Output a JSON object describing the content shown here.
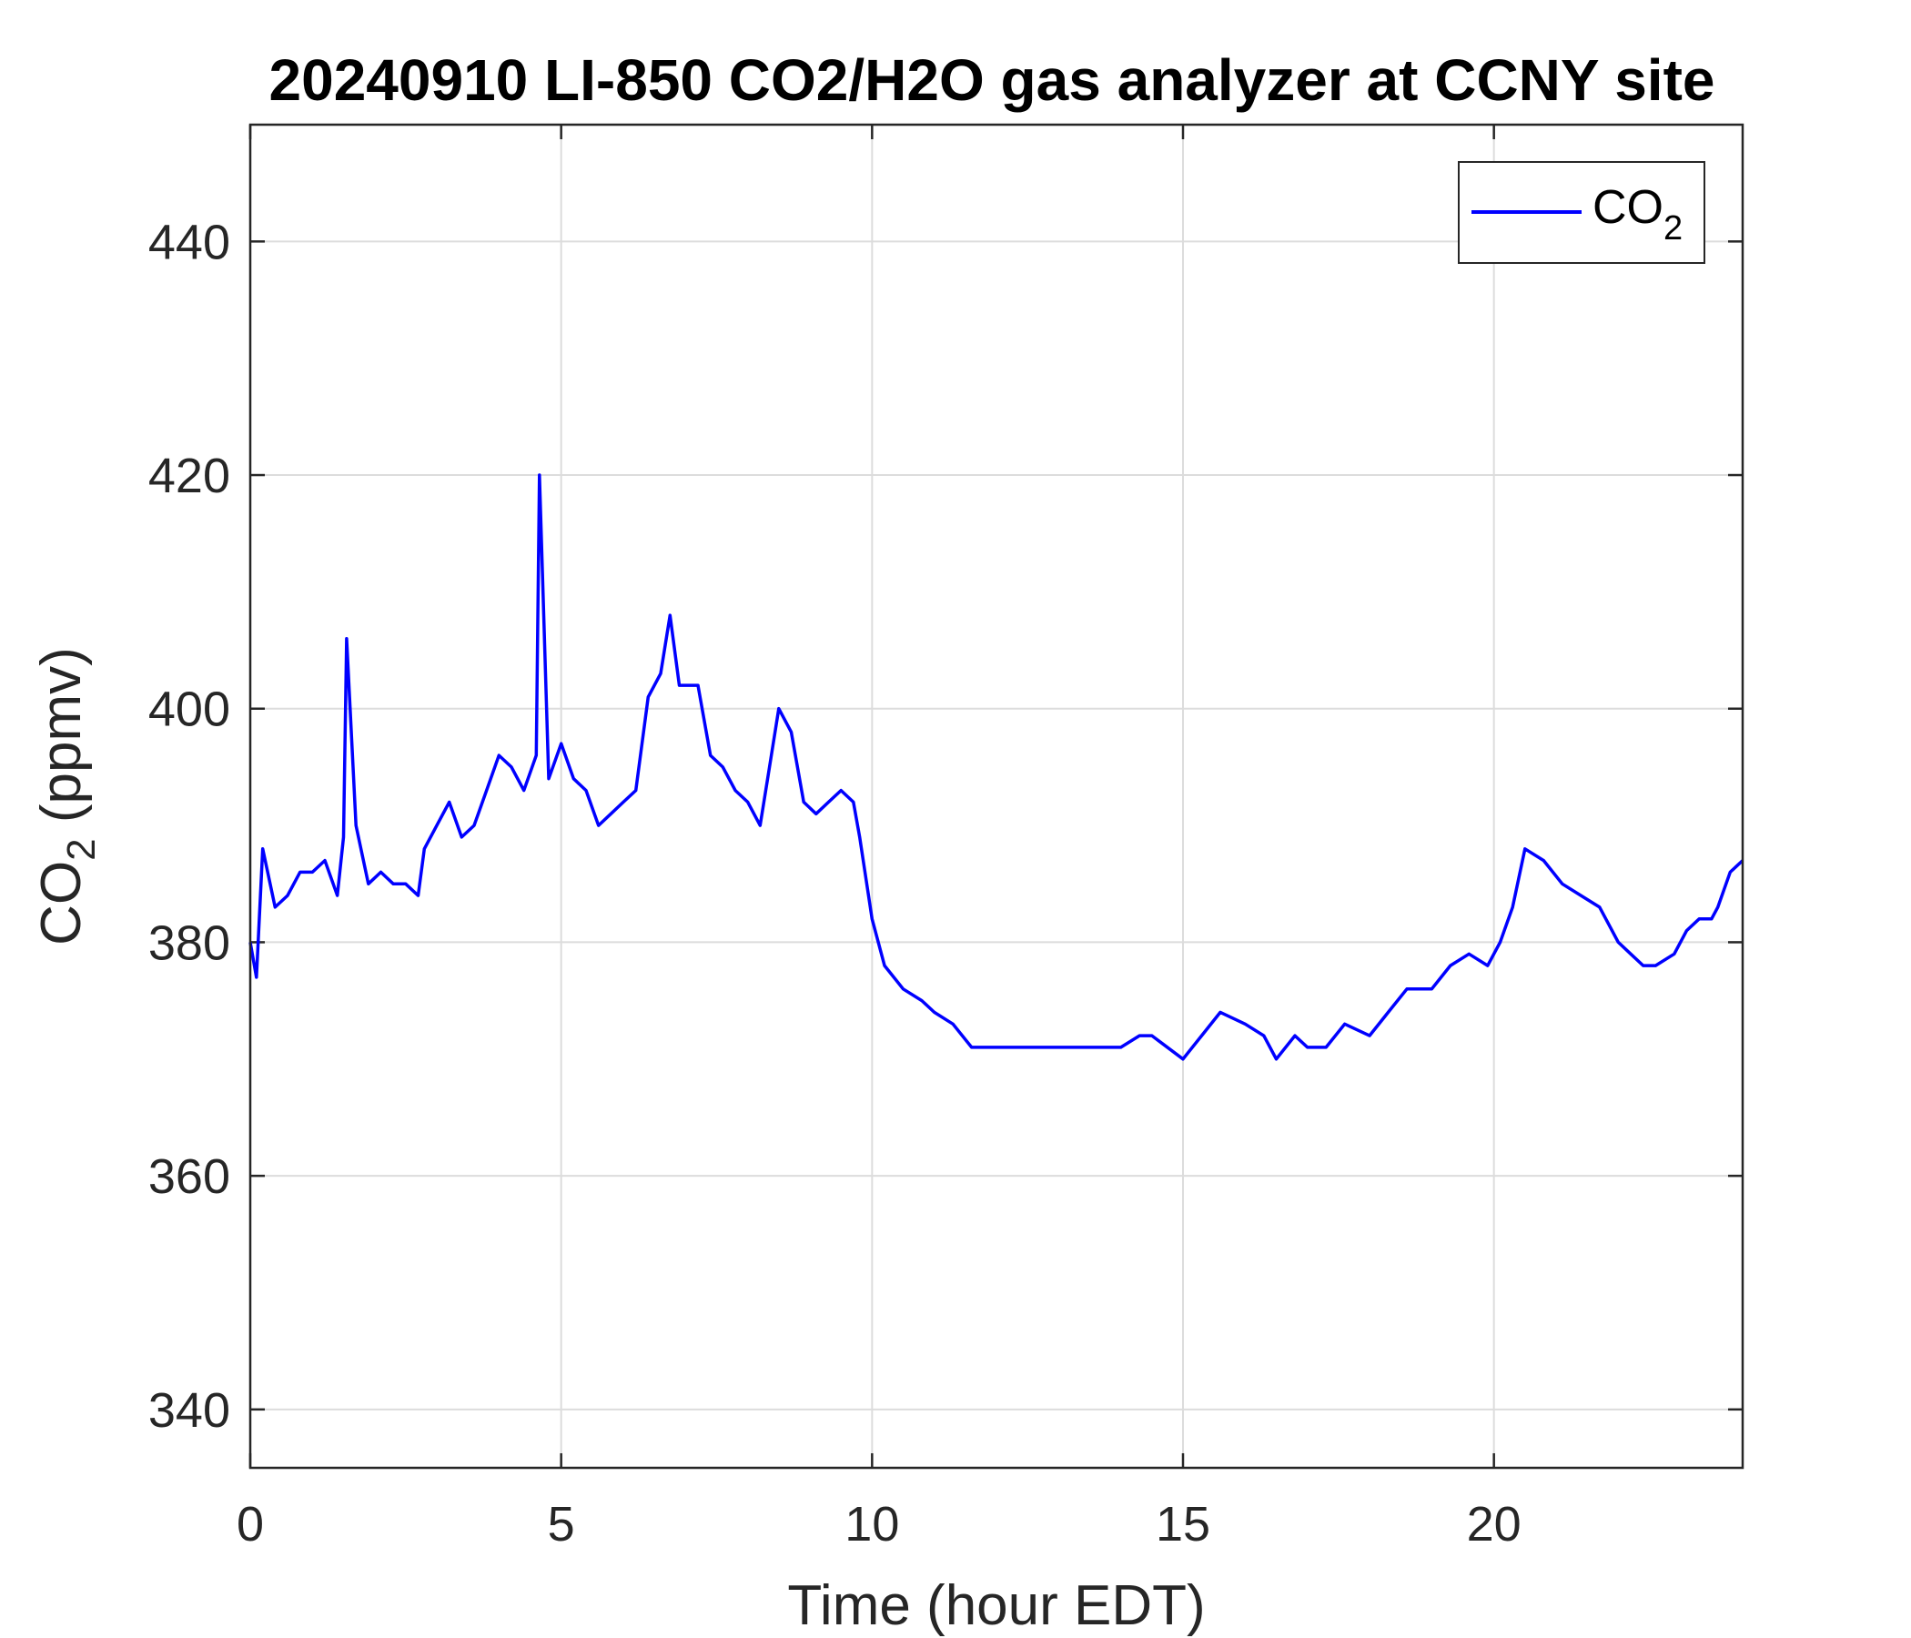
{
  "chart_data": {
    "type": "line",
    "title": "20240910 LI-850 CO2/H2O gas analyzer at CCNY site",
    "xlabel": "Time (hour EDT)",
    "ylabel": {
      "base": "CO",
      "sub": "2",
      "rest": " (ppmv)"
    },
    "xlim": [
      0,
      24
    ],
    "ylim": [
      335,
      450
    ],
    "xticks": [
      0,
      5,
      10,
      15,
      20
    ],
    "yticks": [
      340,
      360,
      380,
      400,
      420,
      440
    ],
    "grid": true,
    "legend": {
      "position": "top-right"
    },
    "series": [
      {
        "name": {
          "base": "CO",
          "sub": "2"
        },
        "color": "#0000ff",
        "x": [
          0,
          0.1,
          0.2,
          0.4,
          0.6,
          0.8,
          1.0,
          1.2,
          1.4,
          1.5,
          1.55,
          1.7,
          1.9,
          2.1,
          2.3,
          2.5,
          2.7,
          2.8,
          3.0,
          3.2,
          3.4,
          3.6,
          3.8,
          4.0,
          4.2,
          4.4,
          4.6,
          4.65,
          4.8,
          5.0,
          5.2,
          5.4,
          5.6,
          5.8,
          6.0,
          6.2,
          6.4,
          6.6,
          6.75,
          6.9,
          7.0,
          7.2,
          7.4,
          7.6,
          7.8,
          8.0,
          8.2,
          8.35,
          8.5,
          8.7,
          8.9,
          9.1,
          9.3,
          9.5,
          9.7,
          9.8,
          10.0,
          10.2,
          10.5,
          10.8,
          11.0,
          11.3,
          11.6,
          12.0,
          12.5,
          13.0,
          13.5,
          14.0,
          14.3,
          14.5,
          15.0,
          15.3,
          15.6,
          16.0,
          16.3,
          16.5,
          16.8,
          17.0,
          17.3,
          17.6,
          18.0,
          18.3,
          18.6,
          19.0,
          19.3,
          19.6,
          19.9,
          20.1,
          20.3,
          20.5,
          20.8,
          21.1,
          21.4,
          21.7,
          22.0,
          22.2,
          22.4,
          22.6,
          22.9,
          23.1,
          23.3,
          23.5,
          23.6,
          23.8,
          24.0
        ],
        "y": [
          380,
          377,
          388,
          383,
          384,
          386,
          386,
          387,
          384,
          389,
          406,
          390,
          385,
          386,
          385,
          385,
          384,
          388,
          390,
          392,
          389,
          390,
          393,
          396,
          395,
          393,
          396,
          420,
          394,
          397,
          394,
          393,
          390,
          391,
          392,
          393,
          401,
          403,
          408,
          402,
          402,
          402,
          396,
          395,
          393,
          392,
          390,
          395,
          400,
          398,
          392,
          391,
          392,
          393,
          392,
          389,
          382,
          378,
          376,
          375,
          374,
          373,
          371,
          371,
          371,
          371,
          371,
          371,
          372,
          372,
          370,
          372,
          374,
          373,
          372,
          370,
          372,
          371,
          371,
          373,
          372,
          374,
          376,
          376,
          378,
          379,
          378,
          380,
          383,
          388,
          387,
          385,
          384,
          383,
          380,
          379,
          378,
          378,
          379,
          381,
          382,
          382,
          383,
          386,
          387
        ]
      }
    ]
  }
}
